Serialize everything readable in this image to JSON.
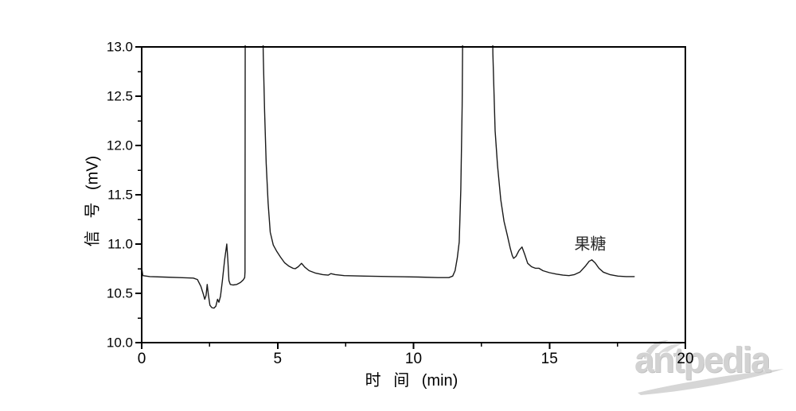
{
  "chart_data": {
    "type": "line",
    "title": "",
    "xlabel": "时 间 (min)",
    "ylabel": "信 号 (mV)",
    "xlim": [
      0,
      20
    ],
    "ylim": [
      10.0,
      13.0
    ],
    "grid": false,
    "line_color": "#1a1a1a",
    "frame_color": "#000000",
    "x_axis": {
      "major_ticks": [
        0,
        5,
        10,
        15,
        20
      ],
      "major_tick_labels": [
        "0",
        "5",
        "10",
        "15",
        "20"
      ],
      "minor_ticks": [
        2.5,
        7.5,
        12.5,
        17.5
      ]
    },
    "y_axis": {
      "major_ticks": [
        10.0,
        10.5,
        11.0,
        11.5,
        12.0,
        12.5,
        13.0
      ],
      "major_tick_labels": [
        "10.0",
        "10.5",
        "11.0",
        "11.5",
        "12.0",
        "12.5",
        "13.0"
      ],
      "minor_ticks": [
        10.25,
        10.75,
        11.25,
        11.75,
        12.25,
        12.75
      ]
    },
    "annotations": [
      {
        "text": "果糖",
        "x": 16.5,
        "y": 11.02
      }
    ],
    "series": [
      {
        "name": "chromatogram-signal",
        "points": [
          [
            0.0,
            10.76
          ],
          [
            0.04,
            10.68
          ],
          [
            0.3,
            10.67
          ],
          [
            0.8,
            10.665
          ],
          [
            1.4,
            10.66
          ],
          [
            1.9,
            10.655
          ],
          [
            2.05,
            10.64
          ],
          [
            2.18,
            10.57
          ],
          [
            2.27,
            10.49
          ],
          [
            2.32,
            10.44
          ],
          [
            2.37,
            10.48
          ],
          [
            2.41,
            10.59
          ],
          [
            2.45,
            10.49
          ],
          [
            2.51,
            10.38
          ],
          [
            2.58,
            10.355
          ],
          [
            2.66,
            10.35
          ],
          [
            2.73,
            10.37
          ],
          [
            2.79,
            10.44
          ],
          [
            2.84,
            10.41
          ],
          [
            2.9,
            10.47
          ],
          [
            2.97,
            10.63
          ],
          [
            3.05,
            10.84
          ],
          [
            3.13,
            11.0
          ],
          [
            3.17,
            10.83
          ],
          [
            3.21,
            10.63
          ],
          [
            3.26,
            10.59
          ],
          [
            3.36,
            10.585
          ],
          [
            3.5,
            10.59
          ],
          [
            3.63,
            10.61
          ],
          [
            3.73,
            10.635
          ],
          [
            3.79,
            10.66
          ],
          [
            3.8,
            10.72
          ],
          [
            3.81,
            13.6
          ],
          [
            4.44,
            13.6
          ],
          [
            4.47,
            12.93
          ],
          [
            4.52,
            12.35
          ],
          [
            4.58,
            11.82
          ],
          [
            4.65,
            11.42
          ],
          [
            4.73,
            11.12
          ],
          [
            4.84,
            10.99
          ],
          [
            4.96,
            10.93
          ],
          [
            5.1,
            10.87
          ],
          [
            5.26,
            10.81
          ],
          [
            5.42,
            10.775
          ],
          [
            5.56,
            10.755
          ],
          [
            5.65,
            10.75
          ],
          [
            5.76,
            10.77
          ],
          [
            5.88,
            10.805
          ],
          [
            6.0,
            10.765
          ],
          [
            6.16,
            10.73
          ],
          [
            6.4,
            10.705
          ],
          [
            6.66,
            10.69
          ],
          [
            6.86,
            10.685
          ],
          [
            6.96,
            10.7
          ],
          [
            7.12,
            10.69
          ],
          [
            7.45,
            10.68
          ],
          [
            8.2,
            10.675
          ],
          [
            9.2,
            10.67
          ],
          [
            10.2,
            10.665
          ],
          [
            10.9,
            10.66
          ],
          [
            11.3,
            10.66
          ],
          [
            11.44,
            10.675
          ],
          [
            11.53,
            10.73
          ],
          [
            11.61,
            10.86
          ],
          [
            11.68,
            11.02
          ],
          [
            11.74,
            11.55
          ],
          [
            11.79,
            12.4
          ],
          [
            11.82,
            13.6
          ],
          [
            12.89,
            13.6
          ],
          [
            12.92,
            12.93
          ],
          [
            13.0,
            12.15
          ],
          [
            13.09,
            11.8
          ],
          [
            13.21,
            11.45
          ],
          [
            13.33,
            11.23
          ],
          [
            13.45,
            11.09
          ],
          [
            13.56,
            10.955
          ],
          [
            13.63,
            10.885
          ],
          [
            13.68,
            10.855
          ],
          [
            13.77,
            10.875
          ],
          [
            13.88,
            10.935
          ],
          [
            13.99,
            10.97
          ],
          [
            14.09,
            10.895
          ],
          [
            14.2,
            10.805
          ],
          [
            14.34,
            10.77
          ],
          [
            14.48,
            10.755
          ],
          [
            14.61,
            10.755
          ],
          [
            14.76,
            10.73
          ],
          [
            15.0,
            10.71
          ],
          [
            15.26,
            10.695
          ],
          [
            15.5,
            10.685
          ],
          [
            15.72,
            10.68
          ],
          [
            15.92,
            10.69
          ],
          [
            16.12,
            10.715
          ],
          [
            16.32,
            10.775
          ],
          [
            16.46,
            10.825
          ],
          [
            16.56,
            10.84
          ],
          [
            16.68,
            10.81
          ],
          [
            16.82,
            10.755
          ],
          [
            16.98,
            10.715
          ],
          [
            17.22,
            10.69
          ],
          [
            17.52,
            10.675
          ],
          [
            17.82,
            10.67
          ],
          [
            18.12,
            10.67
          ]
        ]
      }
    ]
  },
  "watermark": {
    "text": "antpedia",
    "color": "#d2d2d2"
  }
}
